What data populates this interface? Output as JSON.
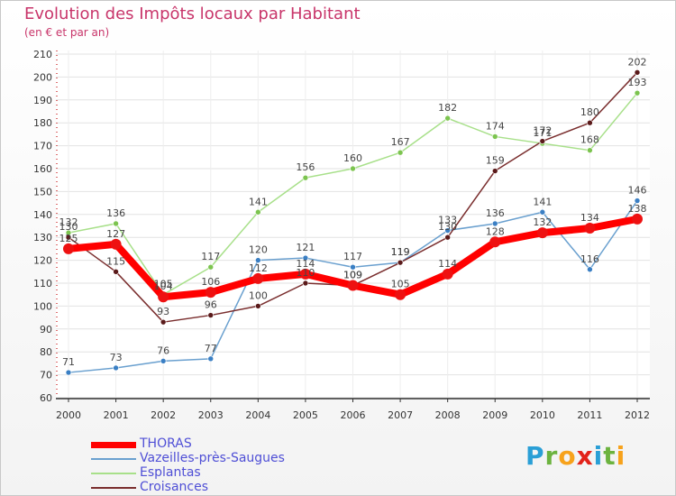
{
  "header": {
    "title": "Evolution des Impôts locaux par Habitant",
    "subtitle": "(en € et par an)"
  },
  "logo": {
    "text": "Proxiti",
    "letters": [
      {
        "ch": "P",
        "color": "#2a9fd6"
      },
      {
        "ch": "r",
        "color": "#6cb33f"
      },
      {
        "ch": "o",
        "color": "#f7a21b"
      },
      {
        "ch": "x",
        "color": "#e2231a"
      },
      {
        "ch": "i",
        "color": "#2a9fd6"
      },
      {
        "ch": "t",
        "color": "#6cb33f"
      },
      {
        "ch": "i",
        "color": "#f7a21b"
      }
    ]
  },
  "chart_data": {
    "type": "line",
    "title": "Evolution des Impôts locaux par Habitant",
    "subtitle": "(en € et par an)",
    "xlabel": "",
    "ylabel": "",
    "x": [
      "2000",
      "2001",
      "2002",
      "2003",
      "2004",
      "2005",
      "2006",
      "2007",
      "2008",
      "2009",
      "2010",
      "2011",
      "2012"
    ],
    "yticks": [
      60,
      70,
      80,
      90,
      100,
      110,
      120,
      130,
      140,
      150,
      160,
      170,
      180,
      190,
      200,
      210
    ],
    "ylim": [
      60,
      210
    ],
    "grid": "horizontal",
    "legend_position": "bottom-left",
    "series": [
      {
        "name": "THORAS",
        "color": "#ff0000",
        "marker": "#ee1111",
        "width": 8,
        "values": [
          125,
          127,
          104,
          106,
          112,
          114,
          109,
          105,
          114,
          128,
          132,
          134,
          138
        ]
      },
      {
        "name": "Vazeilles-près-Saugues",
        "color": "#6aa0cf",
        "marker": "#3a7fc4",
        "width": 1.5,
        "values": [
          71,
          73,
          76,
          77,
          120,
          121,
          117,
          119,
          133,
          136,
          141,
          116,
          146
        ]
      },
      {
        "name": "Esplantas",
        "color": "#a8e08a",
        "marker": "#7cc44f",
        "width": 1.5,
        "values": [
          132,
          136,
          105,
          117,
          141,
          156,
          160,
          167,
          182,
          174,
          171,
          168,
          193
        ]
      },
      {
        "name": "Croisances",
        "color": "#7a2e2e",
        "marker": "#5a1a1a",
        "width": 1.5,
        "values": [
          130,
          115,
          93,
          96,
          100,
          110,
          109,
          119,
          130,
          159,
          172,
          180,
          202
        ]
      }
    ]
  }
}
